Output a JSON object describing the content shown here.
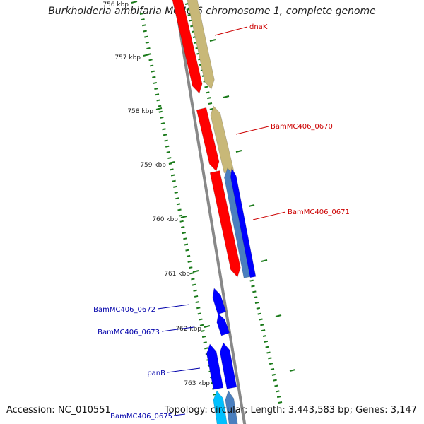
{
  "title": "Burkholderia ambifaria MC40-6 chromosome 1, complete genome",
  "footer": {
    "accession": "Accession: NC_010551",
    "summary": "Topology: circular; Length: 3,443,583 bp; Genes: 3,147"
  },
  "colors": {
    "tick": "#1a7a1a",
    "backbone": "#888888",
    "forward_label": "#cc0000",
    "reverse_label": "#0000aa",
    "red": "#ff0000",
    "khaki": "#c8b878",
    "blue": "#0000ff",
    "steel": "#4a7fbf",
    "cyan": "#00c0ff"
  },
  "scale_labels": [
    "756 kbp",
    "757 kbp",
    "758 kbp",
    "759 kbp",
    "760 kbp",
    "761 kbp",
    "762 kbp",
    "763 kbp"
  ],
  "gene_labels": [
    {
      "text": "dnaK",
      "strand": "forward"
    },
    {
      "text": "BamMC406_0670",
      "strand": "forward"
    },
    {
      "text": "BamMC406_0671",
      "strand": "forward"
    },
    {
      "text": "BamMC406_0672",
      "strand": "reverse"
    },
    {
      "text": "BamMC406_0673",
      "strand": "reverse"
    },
    {
      "text": "panB",
      "strand": "reverse"
    },
    {
      "text": "BamMC406_0675",
      "strand": "reverse"
    }
  ]
}
